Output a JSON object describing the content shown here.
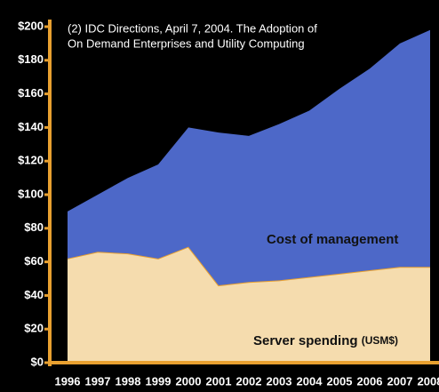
{
  "chart_data": {
    "type": "stacked_area",
    "annotation": [
      "(2) IDC Directions, April 7, 2004. The Adoption of",
      "On Demand Enterprises and Utility Computing"
    ],
    "categories": [
      "1996",
      "1997",
      "1998",
      "1999",
      "2000",
      "2001",
      "2002",
      "2003",
      "2004",
      "2005",
      "2006",
      "2007",
      "2008"
    ],
    "series": [
      {
        "name": "Server spending",
        "unit": "(USM$)",
        "color": "#f5dcae",
        "values": [
          62,
          66,
          65,
          62,
          69,
          46,
          48,
          49,
          51,
          53,
          55,
          57,
          57
        ]
      },
      {
        "name": "Cost of management",
        "color": "#4d68c8",
        "values": [
          28,
          34,
          45,
          56,
          71,
          91,
          87,
          93,
          99,
          110,
          120,
          133,
          141
        ]
      }
    ],
    "axis_color": "#e8a030",
    "ylim": [
      0,
      200
    ],
    "yticks": [
      {
        "value": 0,
        "label": "$0"
      },
      {
        "value": 20,
        "label": "$20"
      },
      {
        "value": 40,
        "label": "$40"
      },
      {
        "value": 60,
        "label": "$60"
      },
      {
        "value": 80,
        "label": "$80"
      },
      {
        "value": 100,
        "label": "$100"
      },
      {
        "value": 120,
        "label": "$120"
      },
      {
        "value": 140,
        "label": "$140"
      },
      {
        "value": 160,
        "label": "$160"
      },
      {
        "value": 180,
        "label": "$180"
      },
      {
        "value": 200,
        "label": "$200"
      }
    ]
  }
}
